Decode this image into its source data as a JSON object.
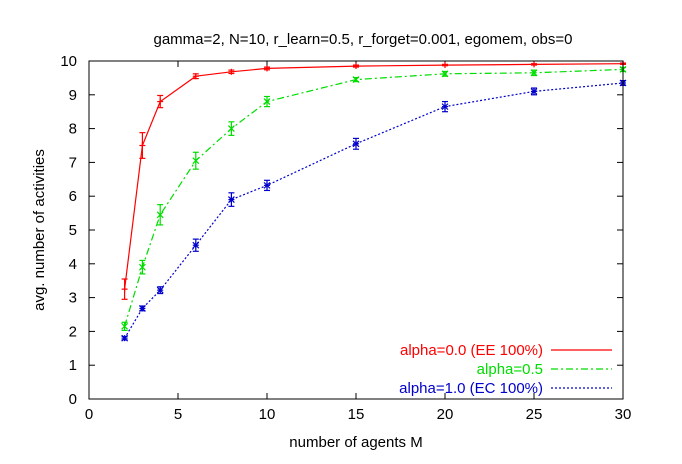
{
  "chart_data": {
    "type": "line",
    "title": "gamma=2, N=10, r_learn=0.5, r_forget=0.001, egomem, obs=0",
    "xlabel": "number of agents M",
    "ylabel": "avg. number of activities",
    "xlim": [
      0,
      30
    ],
    "ylim": [
      0,
      10
    ],
    "xticks": [
      0,
      5,
      10,
      15,
      20,
      25,
      30
    ],
    "yticks": [
      0,
      1,
      2,
      3,
      4,
      5,
      6,
      7,
      8,
      9,
      10
    ],
    "grid": false,
    "legend_position": "bottom-right",
    "series": [
      {
        "name": "alpha=0.0 (EE 100%)",
        "color": "#ff0000",
        "dash": "solid",
        "marker": "plus",
        "x": [
          2,
          3,
          4,
          6,
          8,
          10,
          15,
          20,
          25,
          30
        ],
        "y": [
          3.25,
          7.5,
          8.8,
          9.55,
          9.68,
          9.78,
          9.85,
          9.88,
          9.9,
          9.92
        ],
        "err": [
          0.3,
          0.38,
          0.18,
          0.07,
          0.05,
          0.04,
          0.03,
          0.02,
          0.02,
          0.02
        ]
      },
      {
        "name": "alpha=0.5",
        "color": "#00dd00",
        "dash": "dashdot",
        "marker": "cross",
        "x": [
          2,
          3,
          4,
          6,
          8,
          10,
          15,
          20,
          25,
          30
        ],
        "y": [
          2.15,
          3.9,
          5.45,
          7.05,
          8.0,
          8.8,
          9.45,
          9.62,
          9.65,
          9.75
        ],
        "err": [
          0.12,
          0.2,
          0.3,
          0.25,
          0.2,
          0.15,
          0.06,
          0.07,
          0.08,
          0.06
        ]
      },
      {
        "name": "alpha=1.0 (EC 100%)",
        "color": "#0000cc",
        "dash": "dotted",
        "marker": "star",
        "x": [
          2,
          3,
          4,
          6,
          8,
          10,
          15,
          20,
          25,
          30
        ],
        "y": [
          1.8,
          2.68,
          3.22,
          4.55,
          5.9,
          6.32,
          7.55,
          8.65,
          9.1,
          9.35
        ],
        "err": [
          0.05,
          0.07,
          0.1,
          0.18,
          0.2,
          0.15,
          0.16,
          0.15,
          0.1,
          0.07
        ]
      }
    ]
  }
}
